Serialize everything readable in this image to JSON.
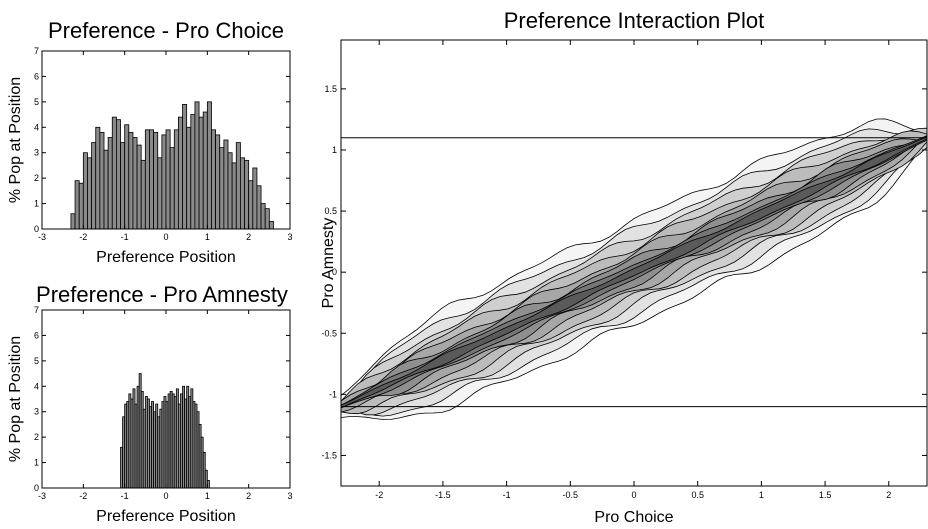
{
  "chart_data": [
    {
      "type": "bar",
      "title": "Preference - Pro Choice",
      "xlabel": "Preference Position",
      "ylabel": "% Pop at Position",
      "xlim": [
        -3,
        3
      ],
      "ylim": [
        0,
        7
      ],
      "xticks": [
        "-3",
        "-2",
        "-1",
        "0",
        "1",
        "2",
        "3"
      ],
      "yticks": [
        "0",
        "1",
        "2",
        "3",
        "4",
        "5",
        "6",
        "7"
      ],
      "bin_width": 0.1,
      "bin_start": -2.3,
      "values": [
        0.6,
        1.9,
        1.8,
        3.0,
        2.8,
        3.4,
        4.0,
        3.8,
        3.1,
        3.6,
        4.4,
        4.3,
        3.4,
        4.1,
        3.8,
        3.6,
        3.3,
        2.7,
        3.9,
        3.9,
        3.8,
        2.8,
        3.7,
        3.9,
        3.2,
        3.9,
        4.4,
        4.9,
        4.0,
        4.5,
        5.0,
        4.4,
        4.6,
        5.0,
        3.9,
        3.7,
        3.2,
        3.5,
        3.0,
        2.6,
        3.4,
        2.8,
        2.7,
        1.9,
        2.4,
        1.7,
        1.0,
        0.8,
        0.3
      ],
      "bar_color": "#8a8a8a"
    },
    {
      "type": "bar",
      "title": "Preference - Pro Amnesty",
      "xlabel": "Preference Position",
      "ylabel": "% Pop at Position",
      "xlim": [
        -3,
        3
      ],
      "ylim": [
        0,
        7
      ],
      "xticks": [
        "-3",
        "-2",
        "-1",
        "0",
        "1",
        "2",
        "3"
      ],
      "yticks": [
        "0",
        "1",
        "2",
        "3",
        "4",
        "5",
        "6",
        "7"
      ],
      "bin_width": 0.05,
      "bin_start": -1.1,
      "values": [
        1.6,
        2.8,
        3.3,
        3.4,
        3.7,
        3.5,
        3.9,
        3.3,
        4.0,
        4.5,
        3.8,
        3.1,
        3.6,
        3.5,
        3.2,
        3.4,
        3.0,
        3.3,
        2.8,
        3.1,
        3.4,
        3.6,
        3.4,
        3.7,
        3.8,
        3.7,
        3.6,
        3.9,
        3.3,
        3.7,
        4.0,
        3.5,
        4.0,
        3.6,
        3.9,
        3.4,
        3.3,
        3.0,
        2.5,
        2.0,
        1.4,
        0.7,
        0.3
      ],
      "bar_color": "#8a8a8a"
    },
    {
      "type": "contour",
      "title": "Preference Interaction Plot",
      "xlabel": "Pro Choice",
      "ylabel": "Pro Amnesty",
      "xlim": [
        -2.3,
        2.3
      ],
      "ylim": [
        -1.75,
        1.9
      ],
      "xticks": [
        "-2",
        "-1.5",
        "-1",
        "-0.5",
        "0",
        "0.5",
        "1",
        "1.5",
        "2"
      ],
      "yticks": [
        "-1.5",
        "-1",
        "-0.5",
        "0",
        "0.5",
        "1",
        "1.5"
      ],
      "hlines": [
        1.1,
        -1.1
      ],
      "levels": [
        {
          "half_width": 0.42,
          "fill": "#f4f4f4"
        },
        {
          "half_width": 0.34,
          "fill": "#e2e2e2"
        },
        {
          "half_width": 0.27,
          "fill": "#cfcfcf"
        },
        {
          "half_width": 0.21,
          "fill": "#bcbcbc"
        },
        {
          "half_width": 0.15,
          "fill": "#a7a7a7"
        },
        {
          "half_width": 0.1,
          "fill": "#8f8f8f"
        },
        {
          "half_width": 0.06,
          "fill": "#767676"
        },
        {
          "half_width": 0.03,
          "fill": "#5a5a5a"
        }
      ]
    }
  ]
}
